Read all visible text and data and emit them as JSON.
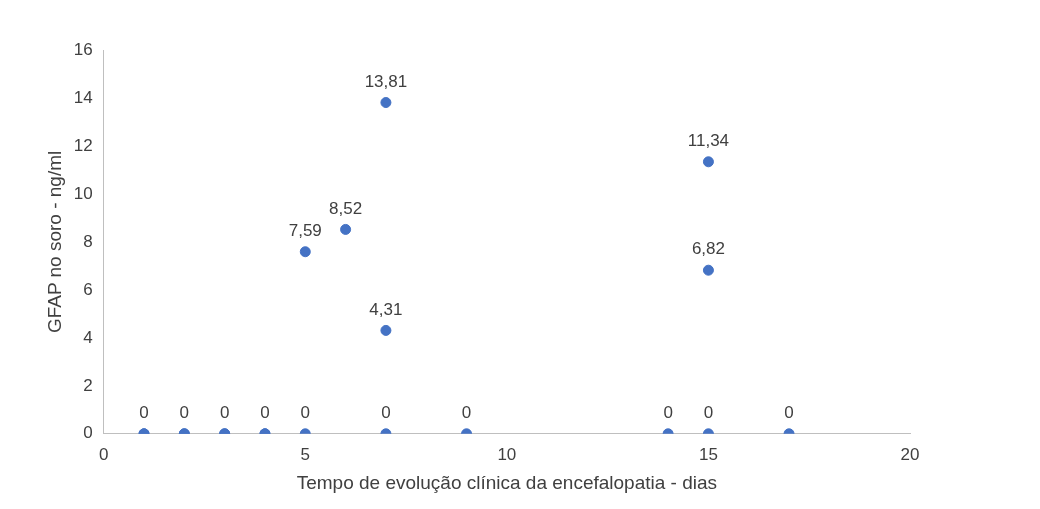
{
  "chart_data": {
    "type": "scatter",
    "xlabel": "Tempo de evolução clínica da encefalopatia - dias",
    "ylabel": "GFAP no soro - ng/ml",
    "x": [
      1,
      1,
      2,
      2,
      3,
      3,
      4,
      4,
      5,
      7,
      9,
      14,
      15,
      17,
      5,
      6,
      7,
      7,
      15,
      15
    ],
    "values": [
      0,
      0,
      0,
      0,
      0,
      0,
      0,
      0,
      0,
      0,
      0,
      0,
      0,
      0,
      7.59,
      8.52,
      13.81,
      4.31,
      11.34,
      6.82
    ],
    "value_labels": [
      "0",
      null,
      "0",
      null,
      "0",
      null,
      "0",
      null,
      "0",
      "0",
      "0",
      "0",
      "0",
      "0",
      "7,59",
      "8,52",
      "13,81",
      "4,31",
      "11,34",
      "6,82"
    ],
    "color": "#4472c4",
    "marker": "circle",
    "xlim": [
      0,
      20
    ],
    "xticks": [
      0,
      5,
      10,
      15,
      20
    ],
    "ylim": [
      0,
      16
    ],
    "yticks": [
      0,
      2,
      4,
      6,
      8,
      10,
      12,
      14,
      16
    ],
    "grid": false,
    "legend": false
  }
}
